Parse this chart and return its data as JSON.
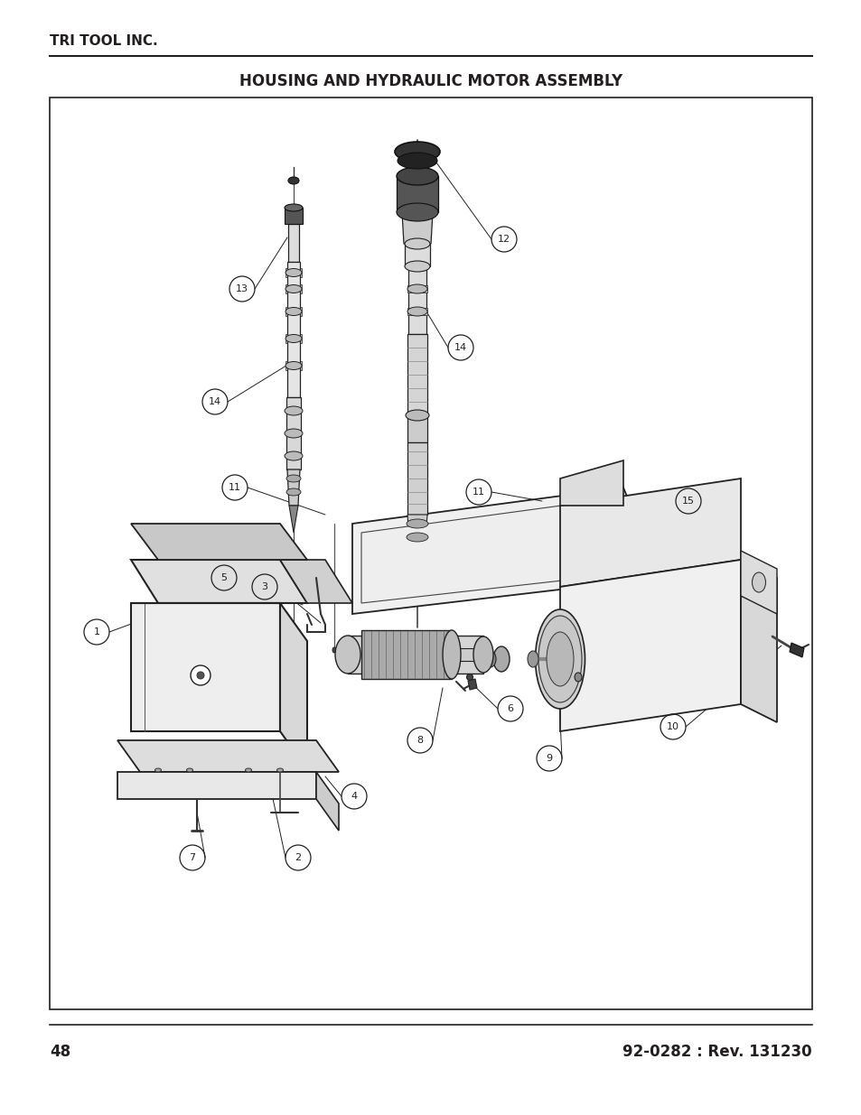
{
  "page_title": "TRI TOOL INC.",
  "diagram_title": "HOUSING AND HYDRAULIC MOTOR ASSEMBLY",
  "page_number": "48",
  "doc_number": "92-0282 : Rev. 131230",
  "background_color": "#ffffff",
  "text_color": "#231f20",
  "border_color": "#231f20",
  "title_fontsize": 11,
  "header_fontsize": 12,
  "footer_fontsize": 12,
  "page_width": 9.54,
  "page_height": 12.35
}
